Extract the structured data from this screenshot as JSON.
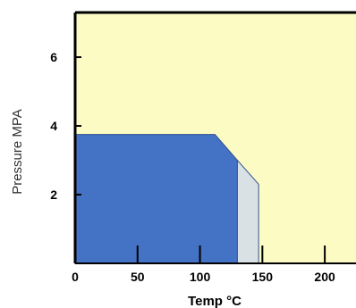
{
  "chart_data": {
    "type": "area",
    "xlabel": "Temp °C",
    "ylabel": "Pressure MPA",
    "xlim": [
      0,
      225
    ],
    "ylim": [
      0,
      7.3
    ],
    "x_ticks": [
      0,
      50,
      100,
      150,
      200
    ],
    "x_tick_labels": [
      "0",
      "50",
      "100",
      "150",
      "200"
    ],
    "y_ticks": [
      2,
      4,
      6
    ],
    "y_tick_labels": [
      "2",
      "4",
      "6"
    ],
    "grid": false,
    "regions": [
      {
        "fill": "#fdfbc4",
        "points": [
          [
            0,
            0
          ],
          [
            0,
            7.3
          ],
          [
            225,
            7.3
          ],
          [
            225,
            0
          ]
        ]
      },
      {
        "fill": "#4472c4",
        "points": [
          [
            0,
            0
          ],
          [
            0,
            3.75
          ],
          [
            112,
            3.75
          ],
          [
            130,
            3.0
          ],
          [
            130,
            0
          ]
        ]
      },
      {
        "fill": "#d9e1e4",
        "points": [
          [
            130,
            0
          ],
          [
            130,
            3.0
          ],
          [
            147,
            2.3
          ],
          [
            147,
            0
          ]
        ]
      }
    ],
    "colors": {
      "background": "#fdfbc4",
      "primary_region": "#4472c4",
      "secondary_region": "#d9e1e4",
      "axis": "#000000"
    }
  }
}
